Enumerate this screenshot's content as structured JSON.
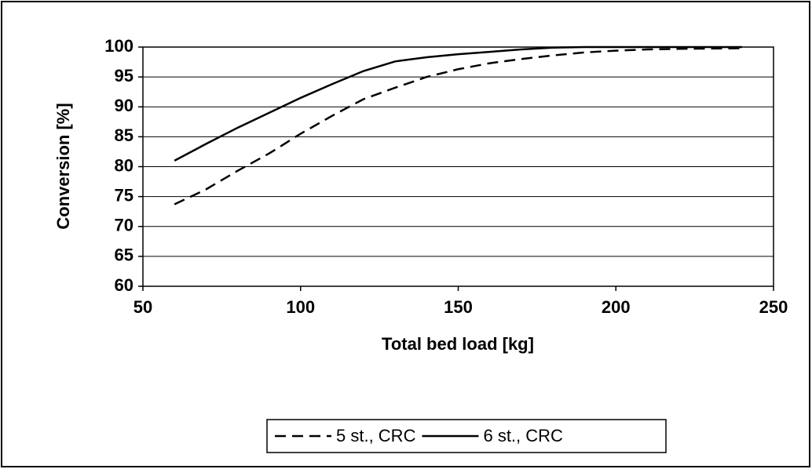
{
  "chart_data": {
    "type": "line",
    "xlabel": "Total bed load [kg]",
    "ylabel": "Conversion [%]",
    "x": [
      60,
      70,
      80,
      90,
      100,
      110,
      120,
      130,
      140,
      150,
      160,
      170,
      180,
      190,
      200,
      210,
      220,
      230,
      240
    ],
    "series": [
      {
        "name": "5 st., CRC",
        "color": "#000000",
        "style": "dashed",
        "values": [
          73.7,
          76.2,
          79.3,
          82.2,
          85.5,
          88.5,
          91.3,
          93.2,
          95,
          96.3,
          97.3,
          98,
          98.6,
          99.1,
          99.4,
          99.6,
          99.7,
          99.75,
          99.8
        ]
      },
      {
        "name": "6 st., CRC",
        "color": "#000000",
        "style": "solid",
        "values": [
          81,
          83.8,
          86.5,
          89,
          91.5,
          93.8,
          96,
          97.6,
          98.3,
          98.8,
          99.2,
          99.6,
          99.9,
          100,
          100,
          100,
          100,
          100,
          100
        ]
      }
    ],
    "xlim": [
      50,
      250
    ],
    "xticks": [
      50,
      100,
      150,
      200,
      250
    ],
    "ylim": [
      60,
      100
    ],
    "yticks": [
      60,
      65,
      70,
      75,
      80,
      85,
      90,
      95,
      100
    ],
    "grid": true,
    "legend": "bottom"
  }
}
